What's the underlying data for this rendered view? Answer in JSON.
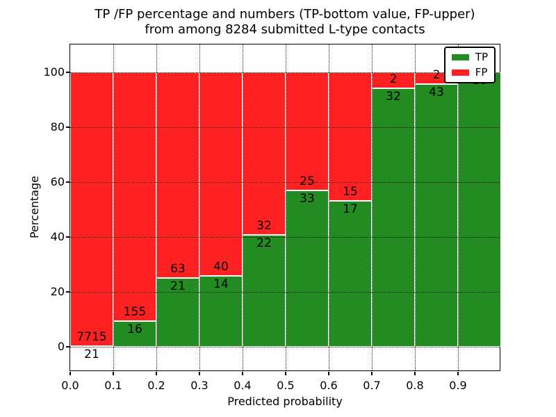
{
  "chart_data": {
    "type": "bar",
    "stacked": true,
    "title_line1": "TP /FP percentage and numbers (TP-bottom value, FP-upper)",
    "title_line2": "from among 8284 submitted L-type contacts",
    "xlabel": "Predicted probability",
    "ylabel": "Percentage",
    "total_contacts": 8284,
    "xlim": [
      0.0,
      1.0
    ],
    "ylim": [
      -9,
      110
    ],
    "x_tick_labels": [
      "0.0",
      "0.1",
      "0.2",
      "0.3",
      "0.4",
      "0.5",
      "0.6",
      "0.7",
      "0.8",
      "0.9"
    ],
    "y_tick_values": [
      0,
      20,
      40,
      60,
      80,
      100
    ],
    "y_tick_labels": [
      "0",
      "20",
      "40",
      "60",
      "80",
      "100"
    ],
    "grid": true,
    "bar_edge_color": "#ffffff",
    "categories": [
      "0.0-0.1",
      "0.1-0.2",
      "0.2-0.3",
      "0.3-0.4",
      "0.4-0.5",
      "0.5-0.6",
      "0.6-0.7",
      "0.7-0.8",
      "0.8-0.9",
      "0.9-1.0"
    ],
    "series": [
      {
        "name": "TP",
        "color": "#228b22",
        "counts": [
          21,
          16,
          21,
          14,
          22,
          33,
          17,
          32,
          43,
          16
        ]
      },
      {
        "name": "FP",
        "color": "#ff2121",
        "counts": [
          7715,
          155,
          63,
          40,
          32,
          25,
          15,
          2,
          2,
          0
        ]
      }
    ],
    "bars": [
      {
        "tp_pct": 0.27,
        "tp_label": "21",
        "fp_label": "7715"
      },
      {
        "tp_pct": 9.36,
        "tp_label": "16",
        "fp_label": "155"
      },
      {
        "tp_pct": 25.0,
        "tp_label": "21",
        "fp_label": "63"
      },
      {
        "tp_pct": 25.93,
        "tp_label": "14",
        "fp_label": "40"
      },
      {
        "tp_pct": 40.74,
        "tp_label": "22",
        "fp_label": "32"
      },
      {
        "tp_pct": 56.9,
        "tp_label": "33",
        "fp_label": "25"
      },
      {
        "tp_pct": 53.13,
        "tp_label": "17",
        "fp_label": "15"
      },
      {
        "tp_pct": 94.12,
        "tp_label": "32",
        "fp_label": "2"
      },
      {
        "tp_pct": 95.56,
        "tp_label": "43",
        "fp_label": "2"
      },
      {
        "tp_pct": 100.0,
        "tp_label": "16",
        "fp_label": ""
      }
    ],
    "legend": {
      "position": "upper right",
      "entries": [
        {
          "label": "TP",
          "color": "#228b22"
        },
        {
          "label": "FP",
          "color": "#ff2121"
        }
      ]
    }
  }
}
